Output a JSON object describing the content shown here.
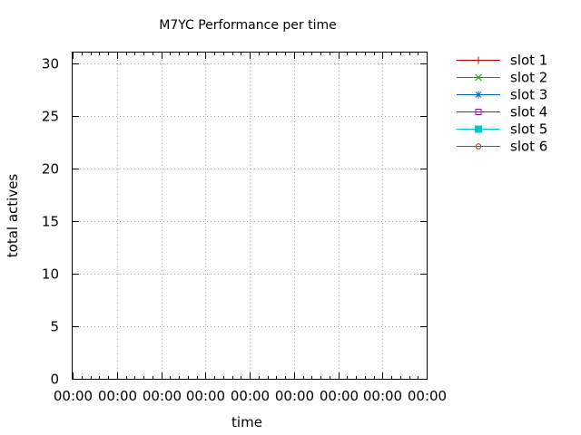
{
  "chart_data": {
    "type": "line",
    "title": "M7YC Performance per time",
    "xlabel": "time",
    "ylabel": "total actives",
    "ylim": [
      0,
      31
    ],
    "yticks": [
      "0",
      "5",
      "10",
      "15",
      "20",
      "25",
      "30"
    ],
    "xticks": [
      "00:00",
      "00:00",
      "00:00",
      "00:00",
      "00:00",
      "00:00",
      "00:00",
      "00:00",
      "00:00"
    ],
    "grid": true,
    "legend_position": "outside-top-right",
    "series": [
      {
        "name": "slot 1",
        "color": "#c00000",
        "marker": "plus",
        "values": []
      },
      {
        "name": "slot 2",
        "color": "#00a000",
        "marker": "cross",
        "values": []
      },
      {
        "name": "slot 3",
        "color": "#0060c0",
        "marker": "star",
        "values": []
      },
      {
        "name": "slot 4",
        "color": "#a000b0",
        "marker": "open-square",
        "values": []
      },
      {
        "name": "slot 5",
        "color": "#00c8c8",
        "marker": "filled-square",
        "values": []
      },
      {
        "name": "slot 6",
        "color": "#b04000",
        "marker": "open-circle",
        "values": []
      }
    ]
  }
}
